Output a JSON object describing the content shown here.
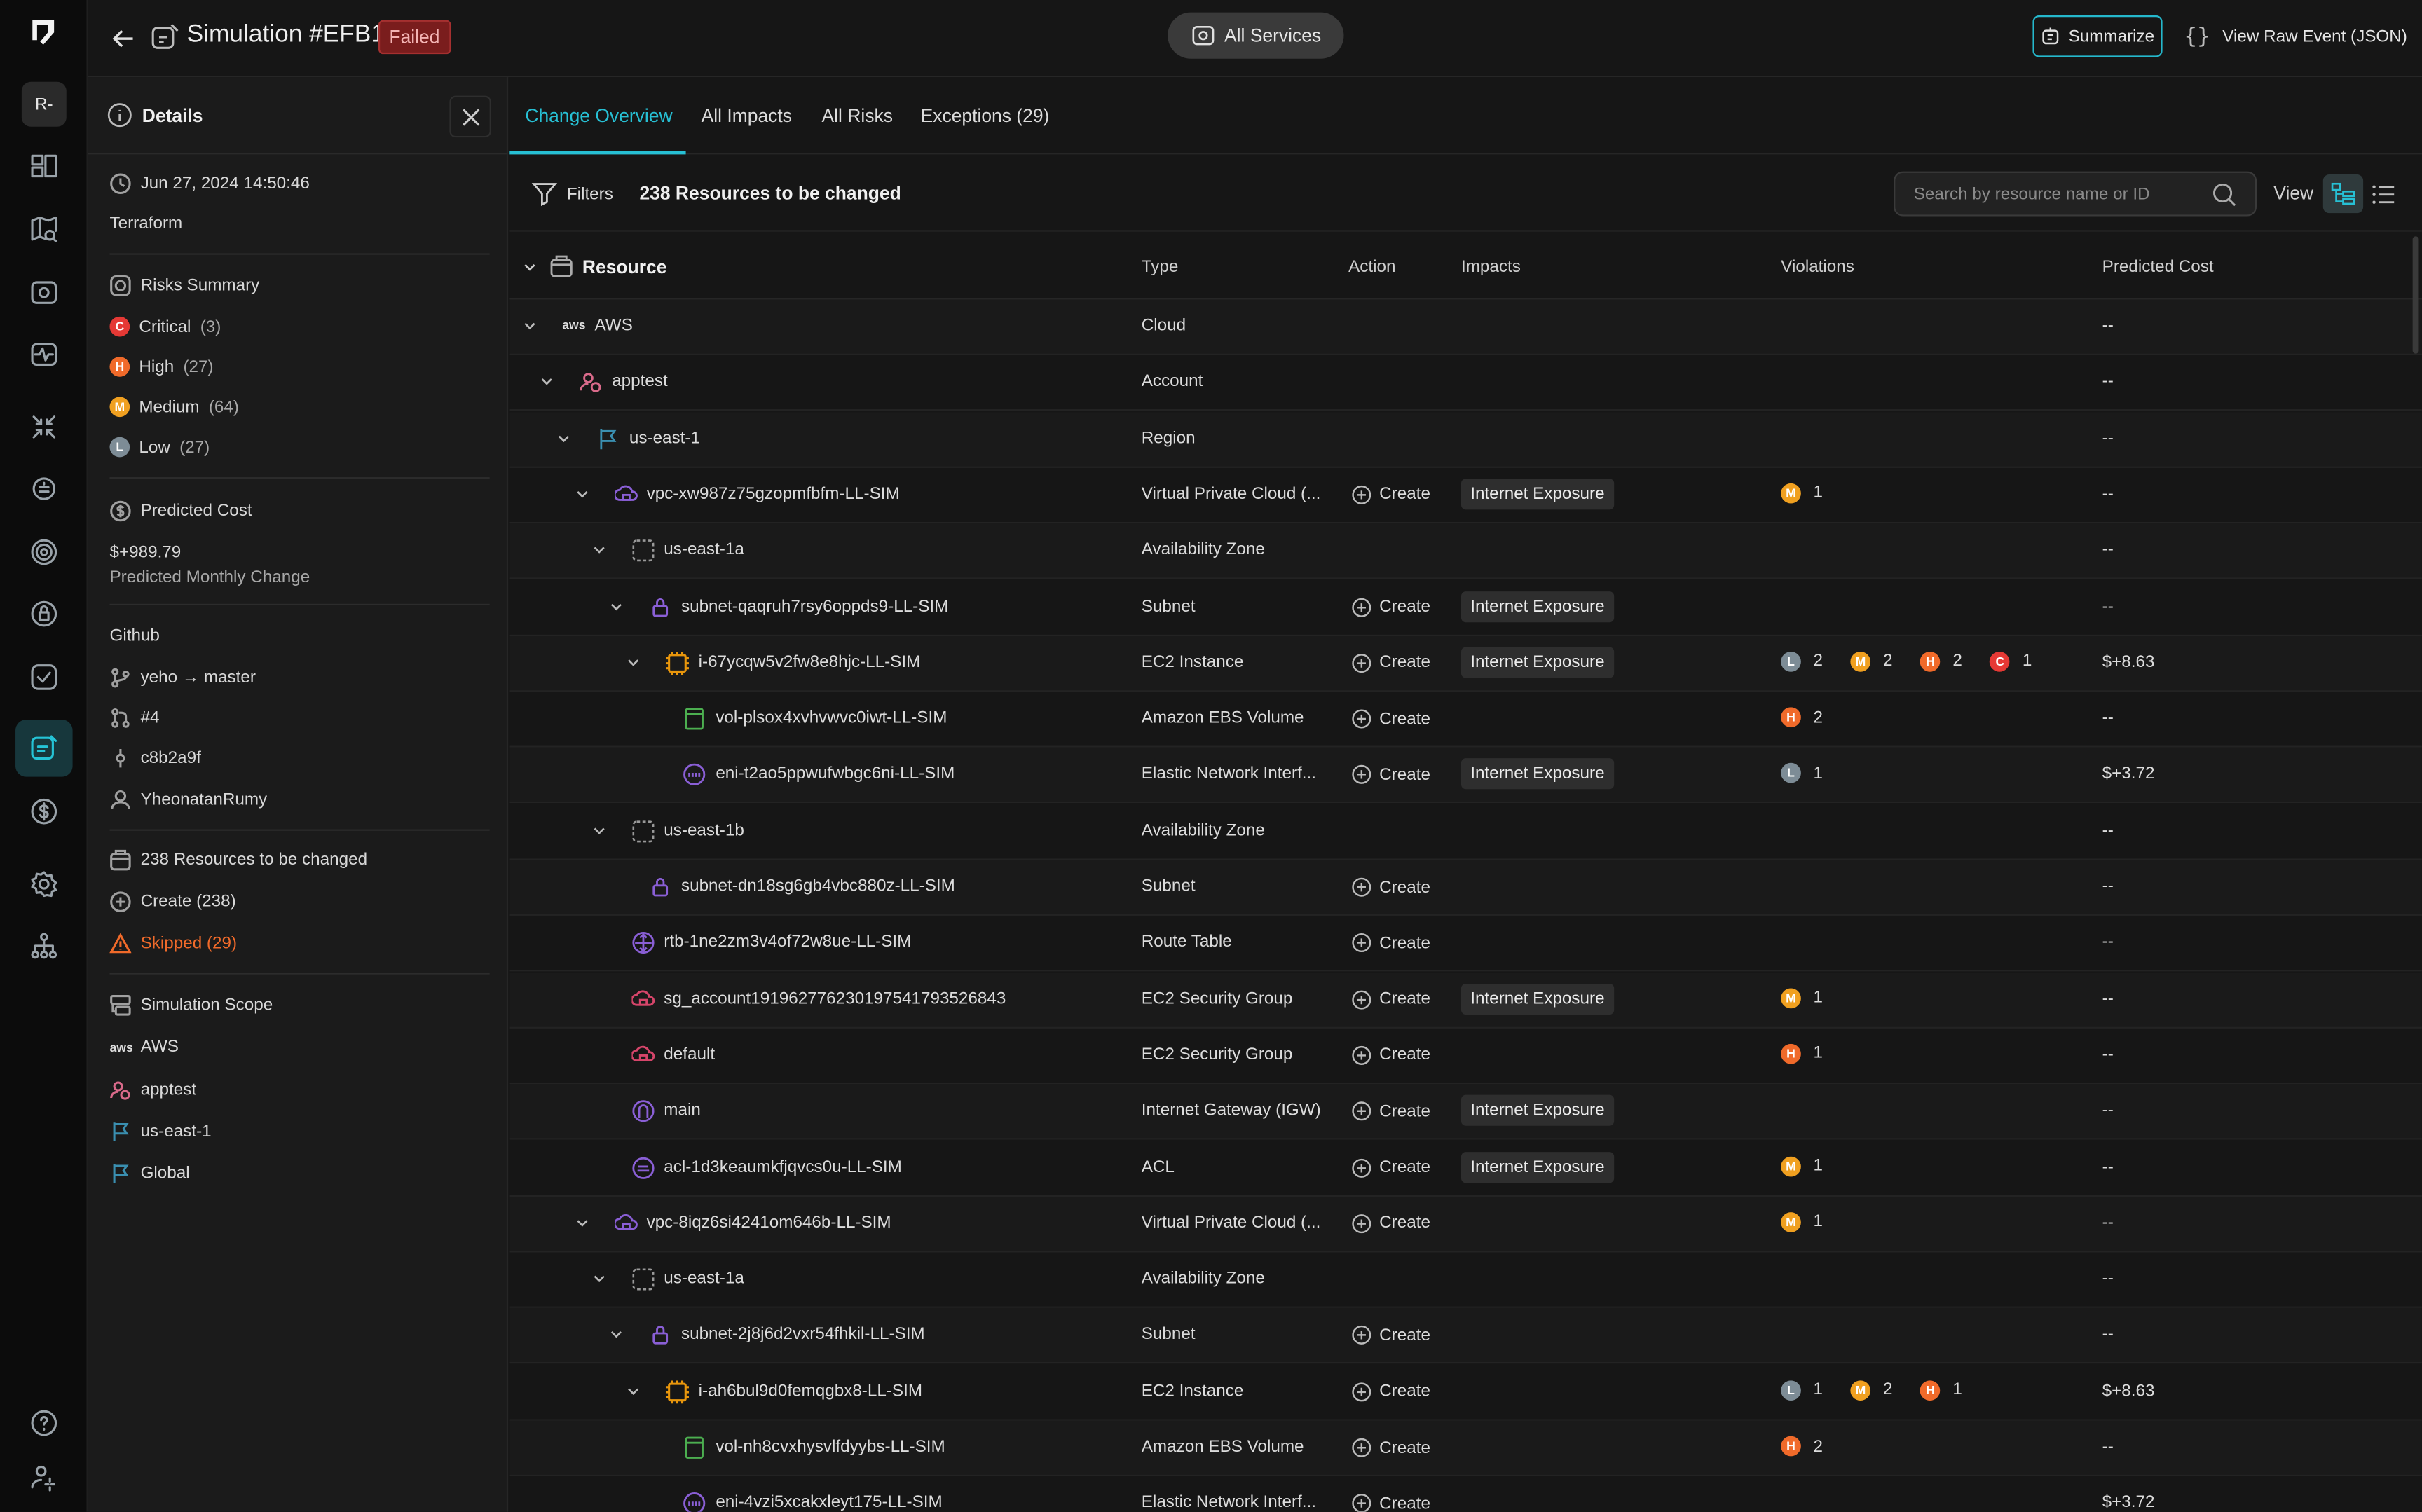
{
  "rail": {
    "workspace": "R-"
  },
  "header": {
    "title": "Simulation #EFB1",
    "status": "Failed",
    "all_services": "All Services",
    "summarize": "Summarize",
    "raw_event": "View Raw Event (JSON)"
  },
  "details": {
    "title": "Details",
    "timestamp": "Jun 27, 2024 14:50:46",
    "source": "Terraform",
    "risks_title": "Risks Summary",
    "risks": [
      {
        "sev": "C",
        "label": "Critical",
        "count": "(3)"
      },
      {
        "sev": "H",
        "label": "High",
        "count": "(27)"
      },
      {
        "sev": "M",
        "label": "Medium",
        "count": "(64)"
      },
      {
        "sev": "L",
        "label": "Low",
        "count": "(27)"
      }
    ],
    "cost_title": "Predicted Cost",
    "cost_value": "$+989.79",
    "cost_note": "Predicted Monthly Change",
    "github_title": "Github",
    "branch": "yeho → master",
    "pr": "#4",
    "commit": "c8b2a9f",
    "author": "YheonatanRumy",
    "resources_title": "238 Resources to be changed",
    "create": "Create (238)",
    "skipped": "Skipped (29)",
    "scope_title": "Simulation Scope",
    "scope": [
      "AWS",
      "apptest",
      "us-east-1",
      "Global"
    ]
  },
  "tabs": [
    "Change Overview",
    "All Impacts",
    "All Risks",
    "Exceptions (29)"
  ],
  "toolbar": {
    "filters": "Filters",
    "count": "238 Resources to be changed",
    "search_placeholder": "Search by resource name or ID",
    "view": "View"
  },
  "columns": {
    "resource": "Resource",
    "type": "Type",
    "action": "Action",
    "impacts": "Impacts",
    "violations": "Violations",
    "cost": "Predicted Cost"
  },
  "rows": [
    {
      "depth": 0,
      "chev": true,
      "icon": "aws",
      "name": "AWS",
      "type": "Cloud",
      "action": "",
      "impact": "",
      "viol": [],
      "cost": "--"
    },
    {
      "depth": 1,
      "chev": true,
      "icon": "account",
      "name": "apptest",
      "type": "Account",
      "action": "",
      "impact": "",
      "viol": [],
      "cost": "--"
    },
    {
      "depth": 2,
      "chev": true,
      "icon": "region",
      "name": "us-east-1",
      "type": "Region",
      "action": "",
      "impact": "",
      "viol": [],
      "cost": "--"
    },
    {
      "depth": 3,
      "chev": true,
      "icon": "vpc",
      "name": "vpc-xw987z75gzopmfbfm-LL-SIM",
      "type": "Virtual Private Cloud (...",
      "action": "Create",
      "impact": "Internet Exposure",
      "viol": [
        [
          "m",
          "1"
        ]
      ],
      "cost": "--"
    },
    {
      "depth": 4,
      "chev": true,
      "icon": "az",
      "name": "us-east-1a",
      "type": "Availability Zone",
      "action": "",
      "impact": "",
      "viol": [],
      "cost": "--"
    },
    {
      "depth": 5,
      "chev": true,
      "icon": "subnet",
      "name": "subnet-qaqruh7rsy6oppds9-LL-SIM",
      "type": "Subnet",
      "action": "Create",
      "impact": "Internet Exposure",
      "viol": [],
      "cost": "--"
    },
    {
      "depth": 6,
      "chev": true,
      "icon": "ec2",
      "name": "i-67ycqw5v2fw8e8hjc-LL-SIM",
      "type": "EC2 Instance",
      "action": "Create",
      "impact": "Internet Exposure",
      "viol": [
        [
          "l",
          "2"
        ],
        [
          "m",
          "2"
        ],
        [
          "h",
          "2"
        ],
        [
          "c",
          "1"
        ]
      ],
      "cost": "$+8.63"
    },
    {
      "depth": 7,
      "chev": false,
      "icon": "ebs",
      "name": "vol-plsox4xvhvwvc0iwt-LL-SIM",
      "type": "Amazon EBS Volume",
      "action": "Create",
      "impact": "",
      "viol": [
        [
          "h",
          "2"
        ]
      ],
      "cost": "--"
    },
    {
      "depth": 7,
      "chev": false,
      "icon": "eni",
      "name": "eni-t2ao5ppwufwbgc6ni-LL-SIM",
      "type": "Elastic Network Interf...",
      "action": "Create",
      "impact": "Internet Exposure",
      "viol": [
        [
          "l",
          "1"
        ]
      ],
      "cost": "$+3.72"
    },
    {
      "depth": 4,
      "chev": true,
      "icon": "az",
      "name": "us-east-1b",
      "type": "Availability Zone",
      "action": "",
      "impact": "",
      "viol": [],
      "cost": "--"
    },
    {
      "depth": 5,
      "chev": false,
      "icon": "subnet",
      "name": "subnet-dn18sg6gb4vbc880z-LL-SIM",
      "type": "Subnet",
      "action": "Create",
      "impact": "",
      "viol": [],
      "cost": "--"
    },
    {
      "depth": 4,
      "chev": false,
      "icon": "rtb",
      "name": "rtb-1ne2zm3v4of72w8ue-LL-SIM",
      "type": "Route Table",
      "action": "Create",
      "impact": "",
      "viol": [],
      "cost": "--"
    },
    {
      "depth": 4,
      "chev": false,
      "icon": "sg",
      "name": "sg_account191962776230197541793526843",
      "type": "EC2 Security Group",
      "action": "Create",
      "impact": "Internet Exposure",
      "viol": [
        [
          "m",
          "1"
        ]
      ],
      "cost": "--"
    },
    {
      "depth": 4,
      "chev": false,
      "icon": "sg",
      "name": "default",
      "type": "EC2 Security Group",
      "action": "Create",
      "impact": "",
      "viol": [
        [
          "h",
          "1"
        ]
      ],
      "cost": "--"
    },
    {
      "depth": 4,
      "chev": false,
      "icon": "igw",
      "name": "main",
      "type": "Internet Gateway (IGW)",
      "action": "Create",
      "impact": "Internet Exposure",
      "viol": [],
      "cost": "--"
    },
    {
      "depth": 4,
      "chev": false,
      "icon": "acl",
      "name": "acl-1d3keaumkfjqvcs0u-LL-SIM",
      "type": "ACL",
      "action": "Create",
      "impact": "Internet Exposure",
      "viol": [
        [
          "m",
          "1"
        ]
      ],
      "cost": "--"
    },
    {
      "depth": 3,
      "chev": true,
      "icon": "vpc",
      "name": "vpc-8iqz6si4241om646b-LL-SIM",
      "type": "Virtual Private Cloud (...",
      "action": "Create",
      "impact": "",
      "viol": [
        [
          "m",
          "1"
        ]
      ],
      "cost": "--"
    },
    {
      "depth": 4,
      "chev": true,
      "icon": "az",
      "name": "us-east-1a",
      "type": "Availability Zone",
      "action": "",
      "impact": "",
      "viol": [],
      "cost": "--"
    },
    {
      "depth": 5,
      "chev": true,
      "icon": "subnet",
      "name": "subnet-2j8j6d2vxr54fhkil-LL-SIM",
      "type": "Subnet",
      "action": "Create",
      "impact": "",
      "viol": [],
      "cost": "--"
    },
    {
      "depth": 6,
      "chev": true,
      "icon": "ec2",
      "name": "i-ah6bul9d0femqgbx8-LL-SIM",
      "type": "EC2 Instance",
      "action": "Create",
      "impact": "",
      "viol": [
        [
          "l",
          "1"
        ],
        [
          "m",
          "2"
        ],
        [
          "h",
          "1"
        ]
      ],
      "cost": "$+8.63"
    },
    {
      "depth": 7,
      "chev": false,
      "icon": "ebs",
      "name": "vol-nh8cvxhysvlfdyybs-LL-SIM",
      "type": "Amazon EBS Volume",
      "action": "Create",
      "impact": "",
      "viol": [
        [
          "h",
          "2"
        ]
      ],
      "cost": "--"
    },
    {
      "depth": 7,
      "chev": false,
      "icon": "eni",
      "name": "eni-4vzi5xcakxleyt175-LL-SIM",
      "type": "Elastic Network Interf...",
      "action": "Create",
      "impact": "",
      "viol": [],
      "cost": "$+3.72"
    }
  ],
  "colors": {
    "accent": "#27c0d4",
    "critical": "#e53935",
    "high": "#f06a2a",
    "medium": "#f0a020",
    "low": "#7d8c96",
    "skipped": "#f06a2a"
  }
}
